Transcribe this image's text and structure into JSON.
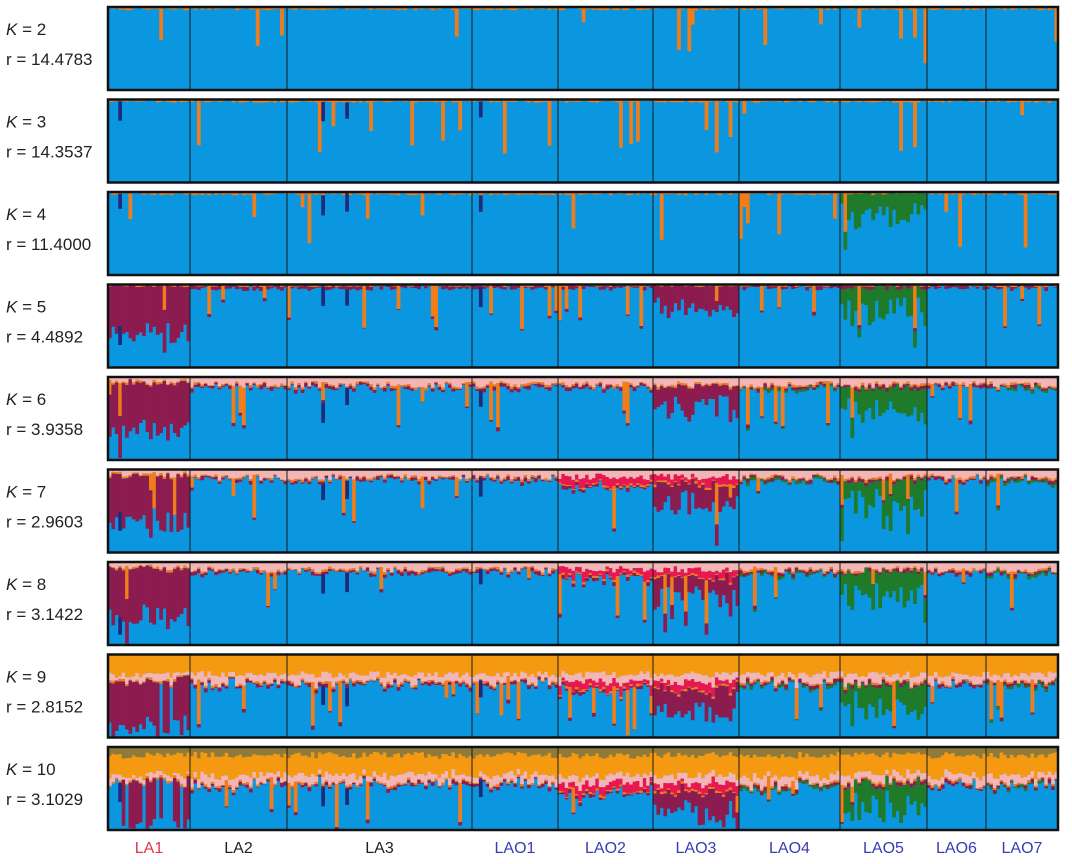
{
  "chart_data": {
    "type": "structure-barplot",
    "k_prefix": "K",
    "r_prefix": "r = ",
    "panels": [
      {
        "k": 2,
        "r": "14.4783"
      },
      {
        "k": 3,
        "r": "14.3537"
      },
      {
        "k": 4,
        "r": "11.4000"
      },
      {
        "k": 5,
        "r": "4.4892"
      },
      {
        "k": 6,
        "r": "3.9358"
      },
      {
        "k": 7,
        "r": "2.9603"
      },
      {
        "k": 8,
        "r": "3.1422"
      },
      {
        "k": 9,
        "r": "2.8152"
      },
      {
        "k": 10,
        "r": "3.1029"
      }
    ],
    "populations": [
      {
        "name": "LA1",
        "label_color": "#e5344a",
        "individuals": 24
      },
      {
        "name": "LA2",
        "label_color": "#231f20",
        "individuals": 28
      },
      {
        "name": "LA3",
        "label_color": "#231f20",
        "individuals": 54
      },
      {
        "name": "LAO1",
        "label_color": "#3a3bb5",
        "individuals": 25
      },
      {
        "name": "LAO2",
        "label_color": "#3a3bb5",
        "individuals": 28
      },
      {
        "name": "LAO3",
        "label_color": "#3a3bb5",
        "individuals": 25
      },
      {
        "name": "LAO4",
        "label_color": "#3a3bb5",
        "individuals": 29
      },
      {
        "name": "LAO5",
        "label_color": "#3a3bb5",
        "individuals": 25
      },
      {
        "name": "LAO6",
        "label_color": "#3a3bb5",
        "individuals": 17
      },
      {
        "name": "LAO7",
        "label_color": "#3a3bb5",
        "individuals": 21
      }
    ],
    "cluster_colors": {
      "blue": "#0b97e0",
      "orange": "#f07c1a",
      "navy": "#1e2a7a",
      "green": "#1f7a2a",
      "maroon": "#8c1c4f",
      "pink": "#f3b5b5",
      "red": "#e8174f",
      "amber": "#f59a10",
      "olive": "#8f7a3a"
    },
    "y_range": [
      0,
      1
    ]
  }
}
